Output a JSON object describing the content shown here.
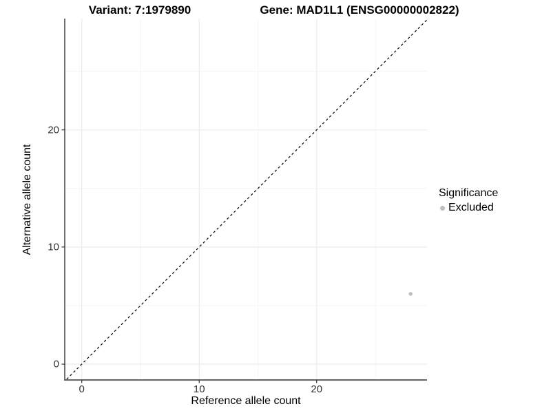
{
  "chart_data": {
    "type": "scatter",
    "title_left": "Variant: 7:1979890",
    "title_right": "Gene: MAD1L1 (ENSG00000002822)",
    "xlabel": "Reference allele count",
    "ylabel": "Alternative allele count",
    "xlim": [
      -1.45,
      29.4
    ],
    "ylim": [
      -1.35,
      29.5
    ],
    "x_major_ticks": [
      0,
      10,
      20
    ],
    "y_major_ticks": [
      0,
      10,
      20
    ],
    "x_minor_ticks": [
      5,
      15,
      25
    ],
    "y_minor_ticks": [
      5,
      15,
      25
    ],
    "grid": "major+minor",
    "identity_line": {
      "equation": "y = x",
      "style": "dashed",
      "color": "#000000"
    },
    "series": [
      {
        "name": "Excluded",
        "color": "#bdbdbd",
        "marker": "circle",
        "points": [
          {
            "x": 28,
            "y": 6
          }
        ]
      }
    ],
    "legend": {
      "title": "Significance",
      "position": "right",
      "items": [
        {
          "label": "Excluded",
          "color": "#bdbdbd"
        }
      ]
    }
  },
  "colors": {
    "background": "#ffffff",
    "axis_line": "#333333",
    "tick_mark": "#333333",
    "grid_major": "#ebebeb",
    "grid_minor": "#f5f5f5",
    "point": "#bdbdbd",
    "identity_line": "#000000"
  }
}
